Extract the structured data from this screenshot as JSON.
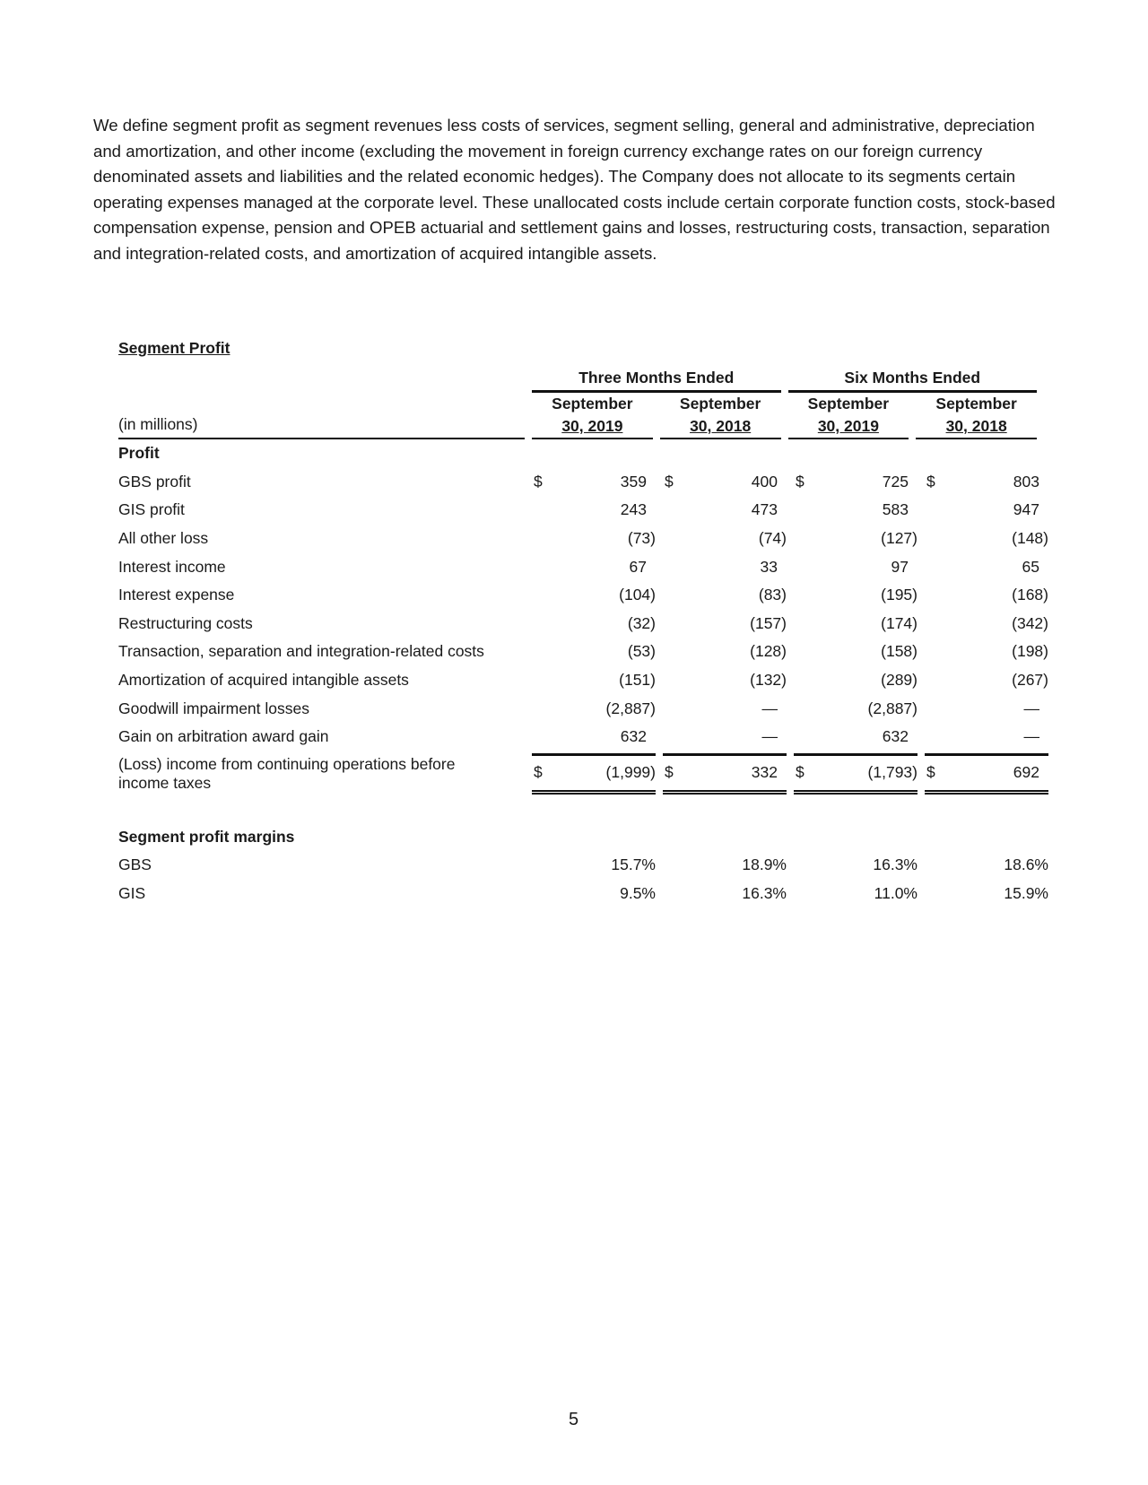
{
  "paragraph": "We define segment profit as segment revenues less costs of services, segment selling, general and administrative, depreciation and amortization, and other income (excluding the movement in foreign currency exchange rates on our foreign currency denominated assets and liabilities and the related economic hedges). The Company does not allocate to its segments certain operating expenses managed at the corporate level. These unallocated costs include certain corporate function costs, stock-based compensation expense, pension and OPEB actuarial and settlement gains and losses, restructuring costs, transaction, separation and integration-related costs, and amortization of acquired intangible assets.",
  "table": {
    "title": "Segment Profit",
    "groups": [
      "Three Months Ended",
      "Six Months Ended"
    ],
    "unit_label": "(in millions)",
    "columns": [
      {
        "month": "September",
        "date": "30, 2019"
      },
      {
        "month": "September",
        "date": "30, 2018"
      },
      {
        "month": "September",
        "date": "30, 2019"
      },
      {
        "month": "September",
        "date": "30, 2018"
      }
    ],
    "section_profit": "Profit",
    "rows": [
      {
        "label": "GBS profit",
        "currency": "$",
        "values": [
          "359",
          "400",
          "725",
          "803"
        ]
      },
      {
        "label": "GIS profit",
        "values": [
          "243",
          "473",
          "583",
          "947"
        ]
      },
      {
        "label": "All other loss",
        "values": [
          "(73)",
          "(74)",
          "(127)",
          "(148)"
        ]
      },
      {
        "label": "Interest income",
        "values": [
          "67",
          "33",
          "97",
          "65"
        ]
      },
      {
        "label": "Interest expense",
        "values": [
          "(104)",
          "(83)",
          "(195)",
          "(168)"
        ]
      },
      {
        "label": "Restructuring costs",
        "values": [
          "(32)",
          "(157)",
          "(174)",
          "(342)"
        ]
      },
      {
        "label": "Transaction, separation and integration-related costs",
        "values": [
          "(53)",
          "(128)",
          "(158)",
          "(198)"
        ]
      },
      {
        "label": "Amortization of acquired intangible assets",
        "values": [
          "(151)",
          "(132)",
          "(289)",
          "(267)"
        ]
      },
      {
        "label": "Goodwill impairment losses",
        "values": [
          "(2,887)",
          "—",
          "(2,887)",
          "—"
        ]
      },
      {
        "label": "Gain on arbitration award gain",
        "values": [
          "632",
          "—",
          "632",
          "—"
        ]
      }
    ],
    "total": {
      "label_line1": "(Loss) income from continuing operations before",
      "label_line2": "income taxes",
      "currency": "$",
      "values": [
        "(1,999)",
        "332",
        "(1,793)",
        "692"
      ]
    },
    "section_margins": "Segment profit margins",
    "margins": [
      {
        "label": "GBS",
        "values": [
          "15.7%",
          "18.9%",
          "16.3%",
          "18.6%"
        ]
      },
      {
        "label": "GIS",
        "values": [
          "9.5%",
          "16.3%",
          "11.0%",
          "15.9%"
        ]
      }
    ]
  },
  "page_number": "5"
}
